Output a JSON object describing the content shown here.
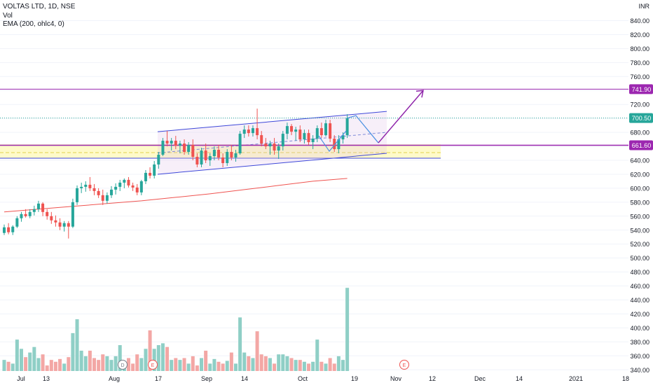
{
  "chart_data": {
    "type": "candlestick",
    "title": "VOLTAS LTD, 1D, NSE",
    "indicators": [
      "Vol",
      "EMA (200, ohlc4, 0)"
    ],
    "currency": "INR",
    "price_axis": {
      "range": [
        330,
        860
      ],
      "ticks": [
        340,
        360,
        380,
        400,
        420,
        440,
        460,
        480,
        500,
        520,
        540,
        560,
        580,
        600,
        620,
        640,
        660,
        680,
        700,
        720,
        740,
        760,
        780,
        800,
        820,
        840
      ],
      "tick_labels": [
        "340.00",
        "360.00",
        "380.00",
        "400.00",
        "420.00",
        "440.00",
        "460.00",
        "480.00",
        "500.00",
        "520.00",
        "540.00",
        "560.00",
        "580.00",
        "600.00",
        "620.00",
        "640.00",
        "660.00",
        "680.00",
        "700.00",
        "720.00",
        "740.00",
        "760.00",
        "780.00",
        "800.00",
        "820.00",
        "840.00"
      ]
    },
    "time_axis": {
      "labels": [
        "Jul",
        "13",
        "Aug",
        "17",
        "Sep",
        "14",
        "Oct",
        "19",
        "Nov",
        "12",
        "Dec",
        "14",
        "2021",
        "18"
      ]
    },
    "candles": [
      {
        "o": 536,
        "h": 548,
        "l": 533,
        "c": 544,
        "v": 12
      },
      {
        "o": 544,
        "h": 550,
        "l": 534,
        "c": 537,
        "v": 10
      },
      {
        "o": 537,
        "h": 547,
        "l": 533,
        "c": 545,
        "v": 8
      },
      {
        "o": 545,
        "h": 560,
        "l": 543,
        "c": 557,
        "v": 34
      },
      {
        "o": 557,
        "h": 566,
        "l": 552,
        "c": 563,
        "v": 24
      },
      {
        "o": 563,
        "h": 570,
        "l": 558,
        "c": 560,
        "v": 15
      },
      {
        "o": 560,
        "h": 570,
        "l": 557,
        "c": 566,
        "v": 20
      },
      {
        "o": 566,
        "h": 575,
        "l": 561,
        "c": 570,
        "v": 26
      },
      {
        "o": 570,
        "h": 582,
        "l": 566,
        "c": 578,
        "v": 14
      },
      {
        "o": 578,
        "h": 580,
        "l": 560,
        "c": 566,
        "v": 18
      },
      {
        "o": 566,
        "h": 570,
        "l": 555,
        "c": 560,
        "v": 6
      },
      {
        "o": 560,
        "h": 566,
        "l": 549,
        "c": 554,
        "v": 12
      },
      {
        "o": 554,
        "h": 561,
        "l": 545,
        "c": 551,
        "v": 10
      },
      {
        "o": 551,
        "h": 557,
        "l": 540,
        "c": 545,
        "v": 13
      },
      {
        "o": 545,
        "h": 553,
        "l": 538,
        "c": 550,
        "v": 8
      },
      {
        "o": 550,
        "h": 553,
        "l": 528,
        "c": 545,
        "v": 15
      },
      {
        "o": 545,
        "h": 585,
        "l": 543,
        "c": 580,
        "v": 41
      },
      {
        "o": 580,
        "h": 604,
        "l": 576,
        "c": 600,
        "v": 56
      },
      {
        "o": 600,
        "h": 608,
        "l": 593,
        "c": 602,
        "v": 22
      },
      {
        "o": 602,
        "h": 610,
        "l": 595,
        "c": 605,
        "v": 16
      },
      {
        "o": 605,
        "h": 616,
        "l": 596,
        "c": 600,
        "v": 22
      },
      {
        "o": 600,
        "h": 606,
        "l": 590,
        "c": 596,
        "v": 14
      },
      {
        "o": 596,
        "h": 600,
        "l": 586,
        "c": 590,
        "v": 12
      },
      {
        "o": 590,
        "h": 598,
        "l": 576,
        "c": 582,
        "v": 18
      },
      {
        "o": 582,
        "h": 594,
        "l": 578,
        "c": 590,
        "v": 16
      },
      {
        "o": 590,
        "h": 603,
        "l": 586,
        "c": 598,
        "v": 12
      },
      {
        "o": 598,
        "h": 607,
        "l": 591,
        "c": 602,
        "v": 16
      },
      {
        "o": 602,
        "h": 612,
        "l": 596,
        "c": 608,
        "v": 28
      },
      {
        "o": 608,
        "h": 614,
        "l": 600,
        "c": 612,
        "v": 8
      },
      {
        "o": 612,
        "h": 616,
        "l": 601,
        "c": 604,
        "v": 14
      },
      {
        "o": 604,
        "h": 608,
        "l": 596,
        "c": 601,
        "v": 8
      },
      {
        "o": 601,
        "h": 606,
        "l": 590,
        "c": 594,
        "v": 18
      },
      {
        "o": 594,
        "h": 612,
        "l": 590,
        "c": 610,
        "v": 14
      },
      {
        "o": 610,
        "h": 626,
        "l": 606,
        "c": 622,
        "v": 24
      },
      {
        "o": 622,
        "h": 630,
        "l": 614,
        "c": 618,
        "v": 44
      },
      {
        "o": 618,
        "h": 639,
        "l": 614,
        "c": 634,
        "v": 24
      },
      {
        "o": 634,
        "h": 652,
        "l": 628,
        "c": 648,
        "v": 28
      },
      {
        "o": 648,
        "h": 672,
        "l": 646,
        "c": 668,
        "v": 30
      },
      {
        "o": 668,
        "h": 682,
        "l": 660,
        "c": 664,
        "v": 26
      },
      {
        "o": 664,
        "h": 672,
        "l": 654,
        "c": 668,
        "v": 12
      },
      {
        "o": 668,
        "h": 675,
        "l": 656,
        "c": 661,
        "v": 14
      },
      {
        "o": 661,
        "h": 668,
        "l": 650,
        "c": 664,
        "v": 12
      },
      {
        "o": 664,
        "h": 670,
        "l": 648,
        "c": 652,
        "v": 14
      },
      {
        "o": 652,
        "h": 666,
        "l": 648,
        "c": 662,
        "v": 8
      },
      {
        "o": 662,
        "h": 670,
        "l": 640,
        "c": 645,
        "v": 16
      },
      {
        "o": 645,
        "h": 650,
        "l": 630,
        "c": 634,
        "v": 6
      },
      {
        "o": 634,
        "h": 658,
        "l": 630,
        "c": 654,
        "v": 14
      },
      {
        "o": 654,
        "h": 664,
        "l": 636,
        "c": 640,
        "v": 22
      },
      {
        "o": 640,
        "h": 650,
        "l": 632,
        "c": 646,
        "v": 8
      },
      {
        "o": 646,
        "h": 660,
        "l": 640,
        "c": 655,
        "v": 13
      },
      {
        "o": 655,
        "h": 662,
        "l": 640,
        "c": 644,
        "v": 10
      },
      {
        "o": 644,
        "h": 650,
        "l": 630,
        "c": 636,
        "v": 8
      },
      {
        "o": 636,
        "h": 656,
        "l": 632,
        "c": 652,
        "v": 11
      },
      {
        "o": 652,
        "h": 662,
        "l": 640,
        "c": 644,
        "v": 20
      },
      {
        "o": 644,
        "h": 655,
        "l": 638,
        "c": 650,
        "v": 8
      },
      {
        "o": 650,
        "h": 682,
        "l": 648,
        "c": 678,
        "v": 58
      },
      {
        "o": 678,
        "h": 690,
        "l": 672,
        "c": 684,
        "v": 20
      },
      {
        "o": 684,
        "h": 690,
        "l": 674,
        "c": 679,
        "v": 16
      },
      {
        "o": 679,
        "h": 690,
        "l": 674,
        "c": 686,
        "v": 14
      },
      {
        "o": 686,
        "h": 714,
        "l": 670,
        "c": 676,
        "v": 43
      },
      {
        "o": 676,
        "h": 682,
        "l": 660,
        "c": 664,
        "v": 18
      },
      {
        "o": 664,
        "h": 672,
        "l": 656,
        "c": 660,
        "v": 16
      },
      {
        "o": 660,
        "h": 668,
        "l": 648,
        "c": 664,
        "v": 14
      },
      {
        "o": 664,
        "h": 672,
        "l": 648,
        "c": 654,
        "v": 8
      },
      {
        "o": 654,
        "h": 664,
        "l": 642,
        "c": 660,
        "v": 18
      },
      {
        "o": 660,
        "h": 682,
        "l": 654,
        "c": 678,
        "v": 18
      },
      {
        "o": 678,
        "h": 694,
        "l": 670,
        "c": 689,
        "v": 16
      },
      {
        "o": 689,
        "h": 692,
        "l": 676,
        "c": 681,
        "v": 14
      },
      {
        "o": 681,
        "h": 688,
        "l": 668,
        "c": 684,
        "v": 12
      },
      {
        "o": 684,
        "h": 690,
        "l": 666,
        "c": 670,
        "v": 12
      },
      {
        "o": 670,
        "h": 684,
        "l": 664,
        "c": 679,
        "v": 10
      },
      {
        "o": 679,
        "h": 684,
        "l": 662,
        "c": 666,
        "v": 8
      },
      {
        "o": 666,
        "h": 676,
        "l": 656,
        "c": 671,
        "v": 10
      },
      {
        "o": 671,
        "h": 690,
        "l": 666,
        "c": 686,
        "v": 34
      },
      {
        "o": 686,
        "h": 694,
        "l": 672,
        "c": 676,
        "v": 10
      },
      {
        "o": 676,
        "h": 698,
        "l": 674,
        "c": 693,
        "v": 8
      },
      {
        "o": 693,
        "h": 698,
        "l": 666,
        "c": 671,
        "v": 14
      },
      {
        "o": 671,
        "h": 676,
        "l": 652,
        "c": 656,
        "v": 8
      },
      {
        "o": 656,
        "h": 676,
        "l": 650,
        "c": 670,
        "v": 16
      },
      {
        "o": 670,
        "h": 680,
        "l": 664,
        "c": 676,
        "v": 12
      },
      {
        "o": 676,
        "h": 706,
        "l": 672,
        "c": 700.5,
        "v": 90
      }
    ],
    "volume_scale_max": 100,
    "ema200": [
      566,
      570,
      574,
      578,
      582,
      587,
      592,
      598,
      604,
      610,
      614
    ],
    "levels": {
      "target": {
        "value": 741.9,
        "label": "741.90"
      },
      "last_price": {
        "value": 700.5,
        "label": "700.50"
      },
      "support": {
        "value": 661.6,
        "label": "661.60"
      },
      "support_zone": [
        643,
        663
      ]
    },
    "channel": {
      "upper": [
        681,
        710
      ],
      "lower": [
        620,
        650
      ]
    },
    "projection": [
      704,
      665,
      740
    ],
    "events": [
      "D",
      "E",
      "E"
    ],
    "colors": {
      "up": "#26a69a",
      "down": "#ef5350",
      "vol_up": "#8fcfc6",
      "vol_down": "#f3a7a5",
      "ema": "#ef5350",
      "level": "#9c27b0",
      "channel": "#3d47d9",
      "zone": "#fff59d",
      "last_price_bg": "#26a69a"
    }
  },
  "legend": {
    "title": "VOLTAS LTD, 1D, NSE",
    "vol": "Vol",
    "ema": "EMA (200, ohlc4, 0)"
  },
  "price_axis": {
    "currency_label": "INR"
  }
}
